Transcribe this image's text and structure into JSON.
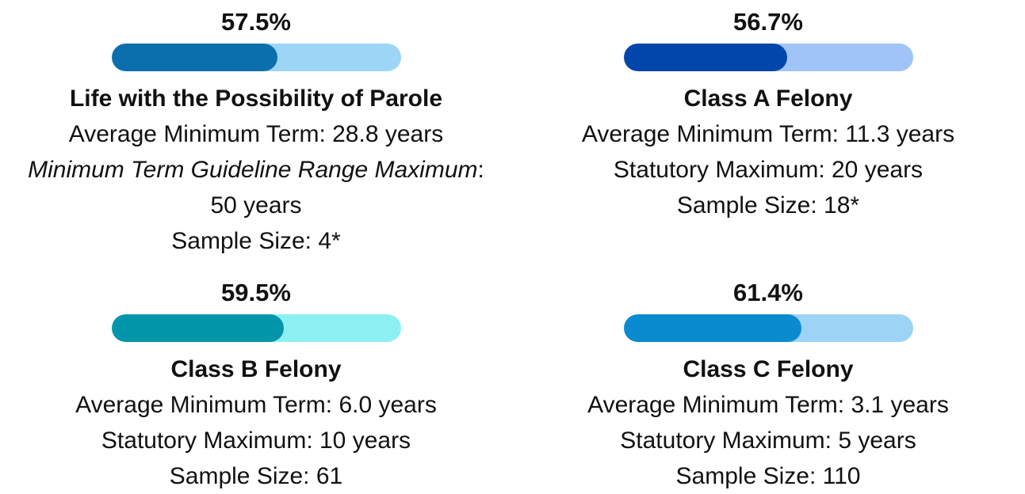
{
  "xlim": [
    0,
    100
  ],
  "cards": [
    {
      "value": 57.5,
      "value_label": "57.5%",
      "color": "#0b6fae",
      "track_color": "#9dd5f6",
      "title": "Life with the Possibility of Parole",
      "lines": [
        {
          "text": "Average Minimum Term: 28.8 years"
        },
        {
          "italic": "Minimum Term Guideline Range Maximum",
          "text": ": 50 years"
        },
        {
          "text": "Sample Size: 4*"
        }
      ]
    },
    {
      "value": 56.7,
      "value_label": "56.7%",
      "color": "#0346ab",
      "track_color": "#a0c4f7",
      "title": "Class A Felony",
      "lines": [
        {
          "text": "Average Minimum Term: 11.3 years"
        },
        {
          "text": "Statutory Maximum: 20 years"
        },
        {
          "text": "Sample Size: 18*"
        }
      ]
    },
    {
      "value": 59.5,
      "value_label": "59.5%",
      "color": "#0396ab",
      "track_color": "#8cf0f3",
      "title": "Class B Felony",
      "lines": [
        {
          "text": "Average Minimum Term: 6.0 years"
        },
        {
          "text": "Statutory Maximum: 10 years"
        },
        {
          "text": "Sample Size: 61"
        }
      ]
    },
    {
      "value": 61.4,
      "value_label": "61.4%",
      "color": "#0a8bd0",
      "track_color": "#9dd3f4",
      "title": "Class C Felony",
      "lines": [
        {
          "text": "Average Minimum Term: 3.1 years"
        },
        {
          "text": "Statutory Maximum: 5 years"
        },
        {
          "text": "Sample Size: 110"
        }
      ]
    }
  ]
}
